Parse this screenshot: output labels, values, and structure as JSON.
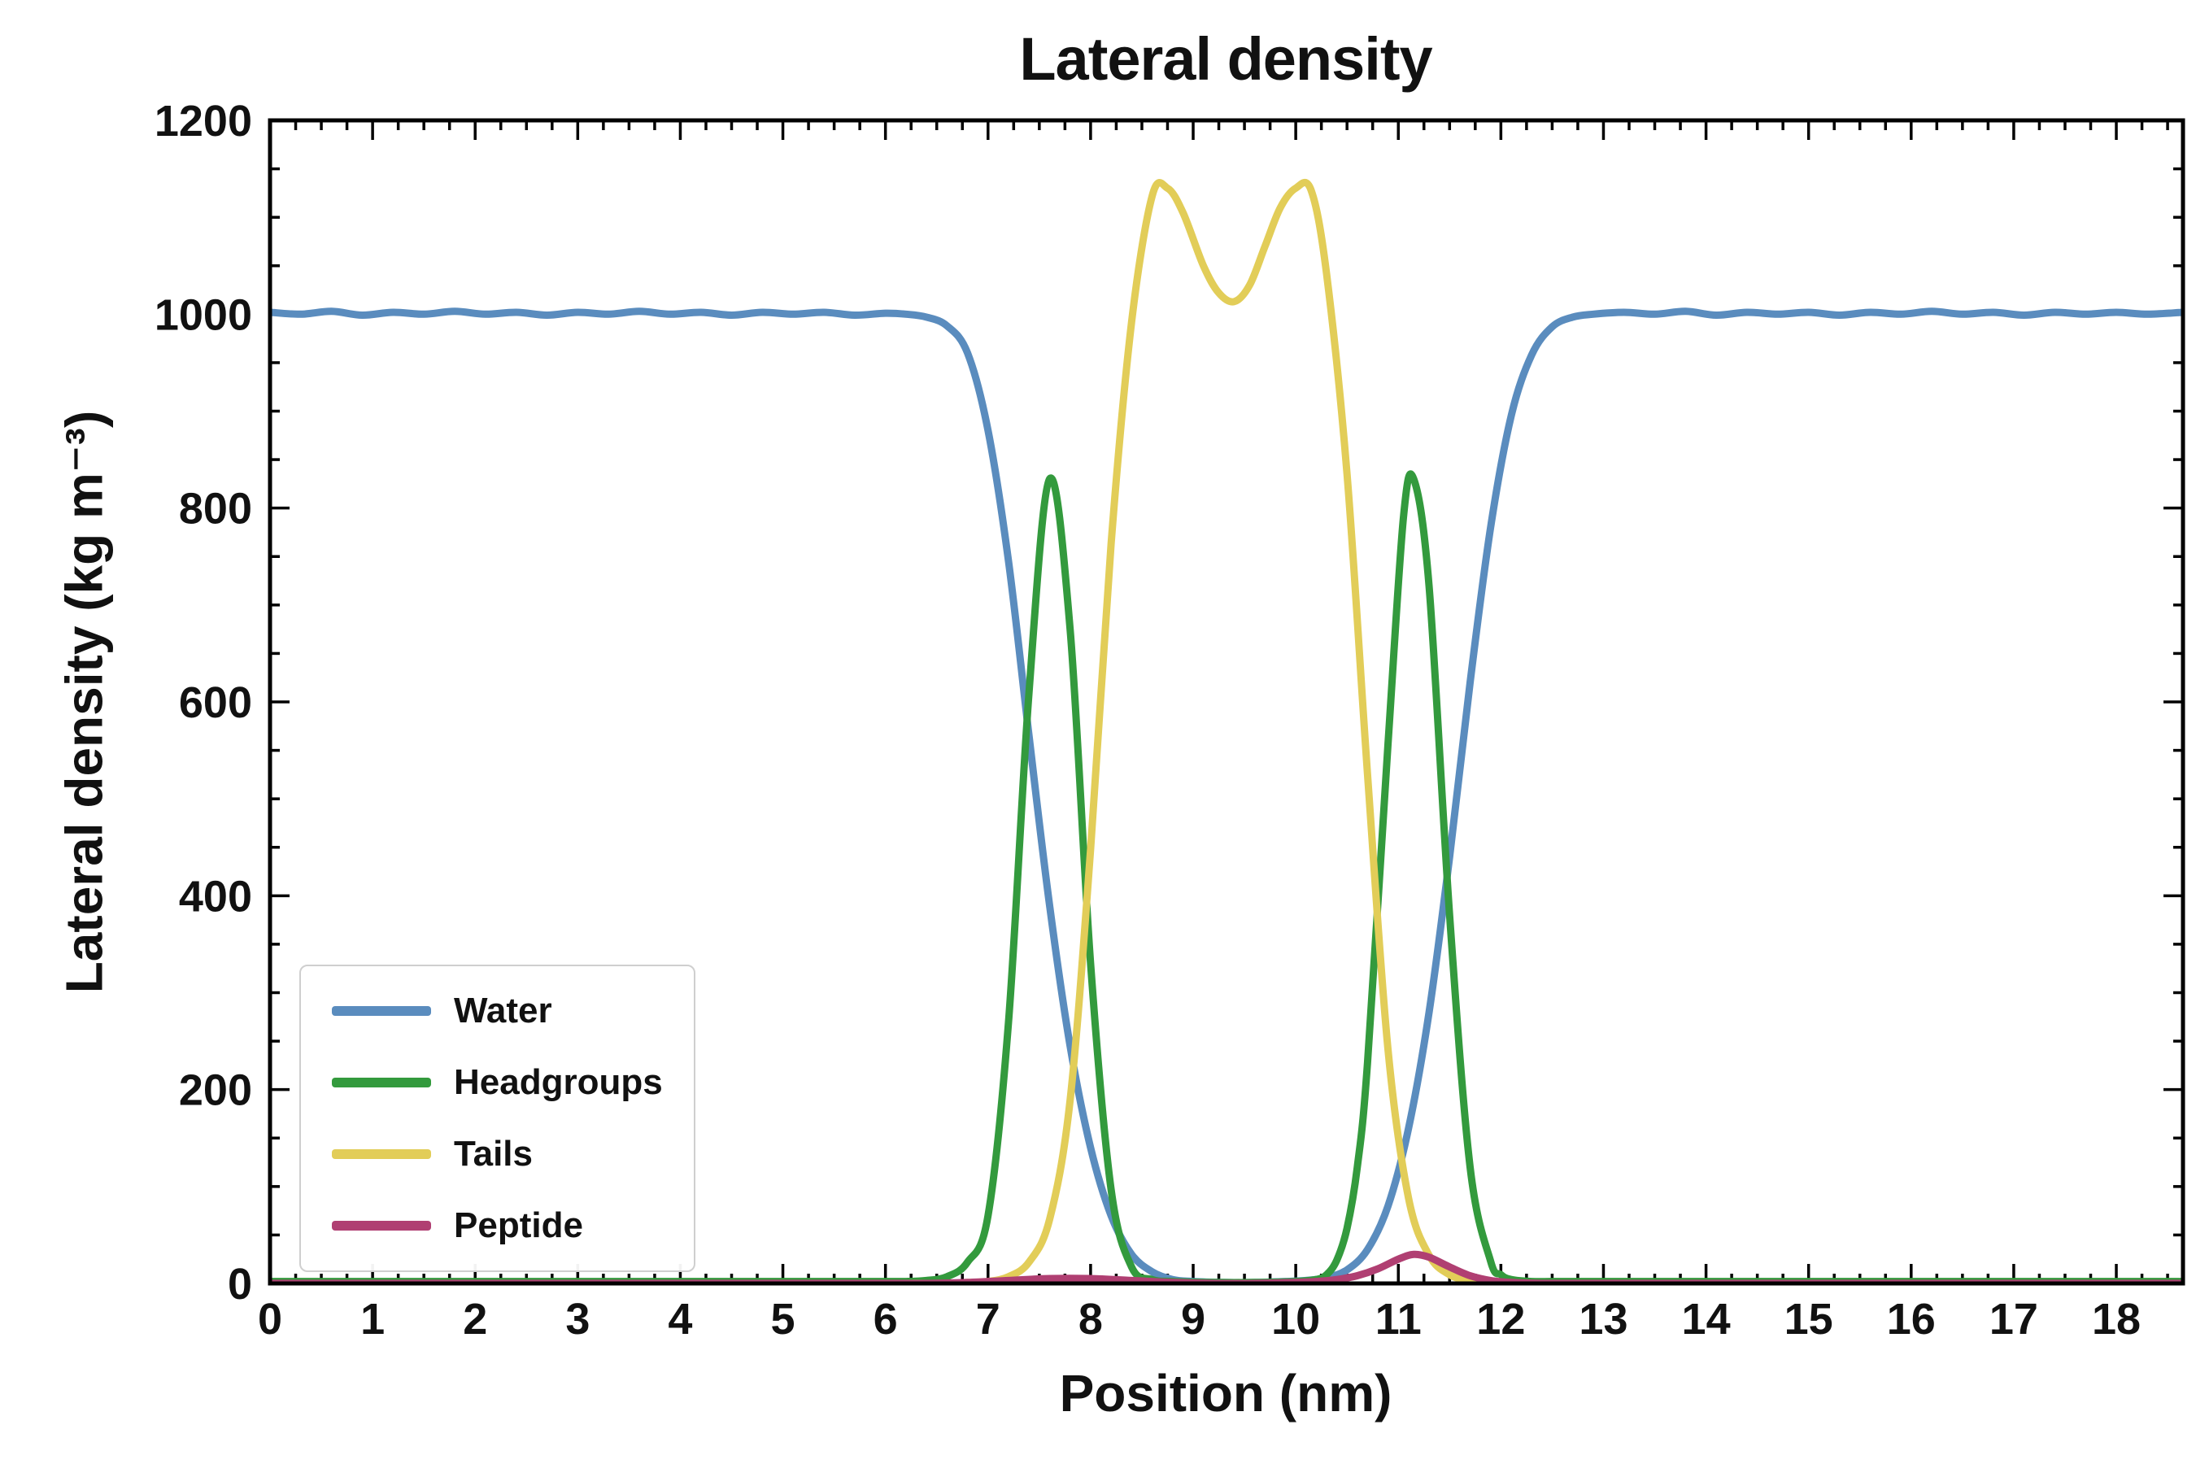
{
  "chart_data": {
    "type": "line",
    "title": "Lateral density",
    "xlabel": "Position (nm)",
    "ylabel": "Lateral density (kg m⁻³)",
    "xlim": [
      0,
      18.65
    ],
    "ylim": [
      0,
      1200
    ],
    "xticks": [
      0,
      1,
      2,
      3,
      4,
      5,
      6,
      7,
      8,
      9,
      10,
      11,
      12,
      13,
      14,
      15,
      16,
      17,
      18
    ],
    "x_minor_step": 0.25,
    "yticks": [
      0,
      200,
      400,
      600,
      800,
      1000,
      1200
    ],
    "y_minor_step": 50,
    "grid": false,
    "legend_position": "lower left",
    "background": "#ffffff",
    "axis_color": "#000000",
    "series": [
      {
        "name": "Water",
        "color": "#5a8cbe",
        "points": [
          [
            0,
            1002
          ],
          [
            0.3,
            1000
          ],
          [
            0.6,
            1003
          ],
          [
            0.9,
            999
          ],
          [
            1.2,
            1002
          ],
          [
            1.5,
            1000
          ],
          [
            1.8,
            1003
          ],
          [
            2.1,
            1000
          ],
          [
            2.4,
            1002
          ],
          [
            2.7,
            999
          ],
          [
            3,
            1002
          ],
          [
            3.3,
            1000
          ],
          [
            3.6,
            1003
          ],
          [
            3.9,
            1000
          ],
          [
            4.2,
            1002
          ],
          [
            4.5,
            999
          ],
          [
            4.8,
            1002
          ],
          [
            5.1,
            1000
          ],
          [
            5.4,
            1002
          ],
          [
            5.7,
            999
          ],
          [
            6,
            1001
          ],
          [
            6.2,
            1000
          ],
          [
            6.4,
            997
          ],
          [
            6.6,
            988
          ],
          [
            6.8,
            960
          ],
          [
            7,
            880
          ],
          [
            7.2,
            745
          ],
          [
            7.4,
            565
          ],
          [
            7.6,
            390
          ],
          [
            7.8,
            245
          ],
          [
            8,
            140
          ],
          [
            8.2,
            70
          ],
          [
            8.4,
            30
          ],
          [
            8.6,
            12
          ],
          [
            8.8,
            4
          ],
          [
            9,
            2
          ],
          [
            9.3,
            1
          ],
          [
            9.6,
            1
          ],
          [
            9.9,
            2
          ],
          [
            10.1,
            3
          ],
          [
            10.3,
            6
          ],
          [
            10.5,
            14
          ],
          [
            10.7,
            35
          ],
          [
            10.9,
            80
          ],
          [
            11.1,
            160
          ],
          [
            11.3,
            280
          ],
          [
            11.5,
            440
          ],
          [
            11.7,
            620
          ],
          [
            11.9,
            780
          ],
          [
            12.1,
            895
          ],
          [
            12.3,
            958
          ],
          [
            12.5,
            987
          ],
          [
            12.7,
            997
          ],
          [
            12.9,
            1000
          ],
          [
            13.2,
            1002
          ],
          [
            13.5,
            1000
          ],
          [
            13.8,
            1003
          ],
          [
            14.1,
            999
          ],
          [
            14.4,
            1002
          ],
          [
            14.7,
            1000
          ],
          [
            15,
            1002
          ],
          [
            15.3,
            999
          ],
          [
            15.6,
            1002
          ],
          [
            15.9,
            1000
          ],
          [
            16.2,
            1003
          ],
          [
            16.5,
            1000
          ],
          [
            16.8,
            1002
          ],
          [
            17.1,
            999
          ],
          [
            17.4,
            1002
          ],
          [
            17.7,
            1000
          ],
          [
            18,
            1002
          ],
          [
            18.3,
            1000
          ],
          [
            18.65,
            1002
          ]
        ]
      },
      {
        "name": "Headgroups",
        "color": "#339a3d",
        "points": [
          [
            0,
            2
          ],
          [
            1,
            2
          ],
          [
            2,
            2
          ],
          [
            3,
            2
          ],
          [
            4,
            2
          ],
          [
            5,
            2
          ],
          [
            5.8,
            2
          ],
          [
            6.2,
            2
          ],
          [
            6.4,
            3
          ],
          [
            6.6,
            7
          ],
          [
            6.8,
            22
          ],
          [
            7,
            70
          ],
          [
            7.2,
            270
          ],
          [
            7.4,
            610
          ],
          [
            7.6,
            830
          ],
          [
            7.8,
            675
          ],
          [
            8,
            330
          ],
          [
            8.2,
            97
          ],
          [
            8.4,
            17
          ],
          [
            8.6,
            4
          ],
          [
            8.8,
            2
          ],
          [
            9.2,
            1
          ],
          [
            9.6,
            1
          ],
          [
            10,
            2
          ],
          [
            10.2,
            4
          ],
          [
            10.3,
            9
          ],
          [
            10.4,
            24
          ],
          [
            10.5,
            57
          ],
          [
            10.6,
            120
          ],
          [
            10.7,
            228
          ],
          [
            10.9,
            557
          ],
          [
            11.05,
            790
          ],
          [
            11.15,
            830
          ],
          [
            11.3,
            719
          ],
          [
            11.5,
            380
          ],
          [
            11.7,
            120
          ],
          [
            11.9,
            23
          ],
          [
            12,
            9
          ],
          [
            12.1,
            4
          ],
          [
            12.3,
            2
          ],
          [
            12.6,
            2
          ],
          [
            13.5,
            2
          ],
          [
            15,
            2
          ],
          [
            16.5,
            2
          ],
          [
            18,
            2
          ],
          [
            18.65,
            2
          ]
        ]
      },
      {
        "name": "Tails",
        "color": "#e2cd58",
        "points": [
          [
            0,
            0
          ],
          [
            1,
            0
          ],
          [
            2,
            0
          ],
          [
            3,
            0
          ],
          [
            4,
            0
          ],
          [
            5,
            0
          ],
          [
            6,
            0
          ],
          [
            6.6,
            0
          ],
          [
            6.8,
            1
          ],
          [
            7,
            2
          ],
          [
            7.2,
            7
          ],
          [
            7.4,
            22
          ],
          [
            7.6,
            66
          ],
          [
            7.8,
            189
          ],
          [
            8,
            448
          ],
          [
            8.2,
            763
          ],
          [
            8.4,
            992
          ],
          [
            8.6,
            1122
          ],
          [
            8.75,
            1130
          ],
          [
            8.9,
            1105
          ],
          [
            9.1,
            1050
          ],
          [
            9.25,
            1022
          ],
          [
            9.4,
            1013
          ],
          [
            9.55,
            1030
          ],
          [
            9.7,
            1070
          ],
          [
            9.85,
            1110
          ],
          [
            10,
            1130
          ],
          [
            10.15,
            1128
          ],
          [
            10.3,
            1042
          ],
          [
            10.5,
            835
          ],
          [
            10.7,
            525
          ],
          [
            10.9,
            241
          ],
          [
            11.1,
            88
          ],
          [
            11.3,
            29
          ],
          [
            11.5,
            9
          ],
          [
            11.7,
            3
          ],
          [
            11.9,
            1
          ],
          [
            12.1,
            0
          ],
          [
            13,
            0
          ],
          [
            14,
            0
          ],
          [
            15,
            0
          ],
          [
            16,
            0
          ],
          [
            17,
            0
          ],
          [
            18,
            0
          ],
          [
            18.65,
            0
          ]
        ]
      },
      {
        "name": "Peptide",
        "color": "#b03f72",
        "points": [
          [
            0,
            0
          ],
          [
            1,
            0
          ],
          [
            2,
            0
          ],
          [
            3,
            0
          ],
          [
            4,
            0
          ],
          [
            5,
            0
          ],
          [
            6,
            0
          ],
          [
            6.4,
            0
          ],
          [
            6.8,
            1
          ],
          [
            7.2,
            3
          ],
          [
            7.6,
            5
          ],
          [
            8,
            5
          ],
          [
            8.4,
            3
          ],
          [
            8.8,
            1
          ],
          [
            9.2,
            0
          ],
          [
            9.6,
            0
          ],
          [
            10,
            1
          ],
          [
            10.2,
            2
          ],
          [
            10.4,
            4
          ],
          [
            10.6,
            8
          ],
          [
            10.8,
            15
          ],
          [
            11,
            25
          ],
          [
            11.15,
            30
          ],
          [
            11.3,
            27
          ],
          [
            11.5,
            17
          ],
          [
            11.7,
            8
          ],
          [
            11.9,
            3
          ],
          [
            12.1,
            1
          ],
          [
            12.4,
            0
          ],
          [
            13,
            0
          ],
          [
            14,
            0
          ],
          [
            15,
            0
          ],
          [
            16,
            0
          ],
          [
            17,
            0
          ],
          [
            18,
            0
          ],
          [
            18.65,
            0
          ]
        ]
      }
    ]
  }
}
